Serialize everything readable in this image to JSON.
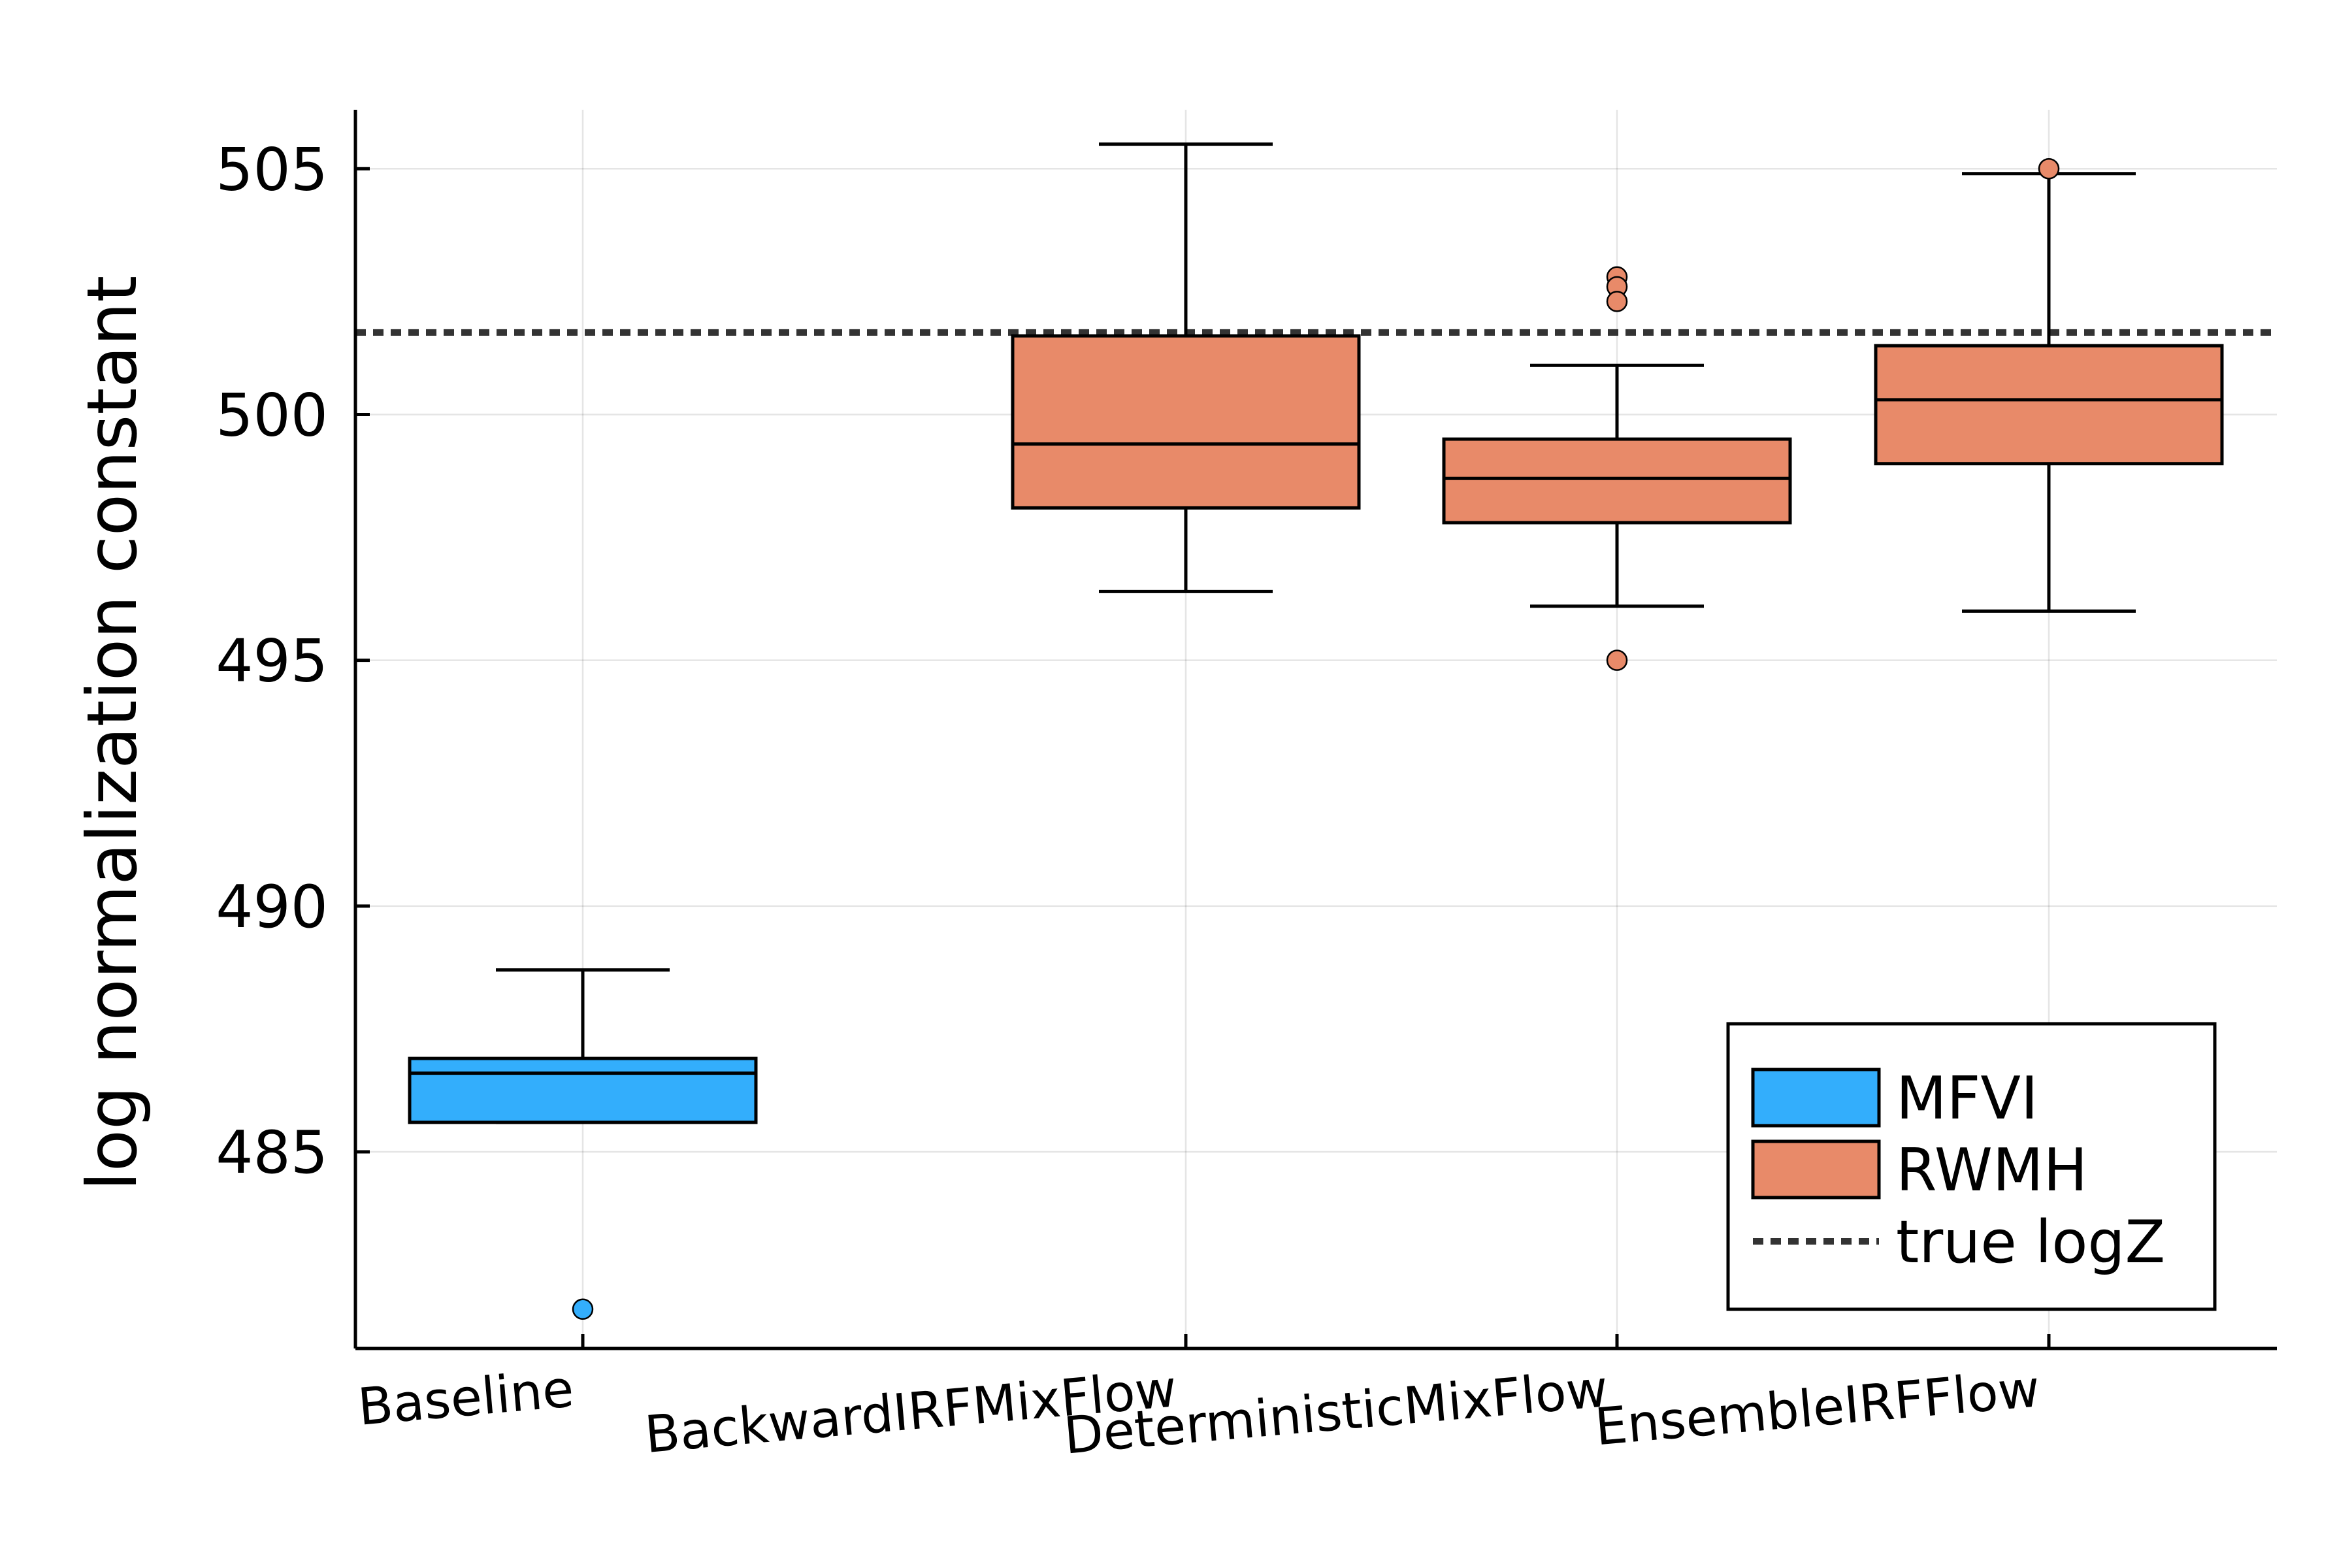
{
  "chart_data": {
    "type": "box",
    "title": "",
    "xlabel": "",
    "ylabel": "log normalization constant",
    "categories": [
      "Baseline",
      "BackwardIRFMixFlow",
      "DeterministicMixFlow",
      "EnsembleIRFFlow"
    ],
    "ylim": [
      481,
      506.2
    ],
    "yticks": [
      485,
      490,
      495,
      500,
      505
    ],
    "grid": true,
    "legend_position": "bottom-right",
    "series": [
      {
        "name": "MFVI",
        "color": "#33aefc",
        "boxes": [
          {
            "category": "Baseline",
            "q1": 485.6,
            "median": 486.6,
            "q3": 486.9,
            "whisker_low": 485.6,
            "whisker_high": 488.7,
            "outliers": [
              481.8
            ]
          }
        ]
      },
      {
        "name": "RWMH",
        "color": "#e88a69",
        "boxes": [
          {
            "category": "BackwardIRFMixFlow",
            "q1": 498.1,
            "median": 499.4,
            "q3": 501.6,
            "whisker_low": 496.4,
            "whisker_high": 505.5,
            "outliers": []
          },
          {
            "category": "DeterministicMixFlow",
            "q1": 497.8,
            "median": 498.7,
            "q3": 499.5,
            "whisker_low": 496.1,
            "whisker_high": 501.0,
            "outliers": [
              502.8,
              502.6,
              502.3,
              495.0
            ]
          },
          {
            "category": "EnsembleIRFFlow",
            "q1": 499.0,
            "median": 500.3,
            "q3": 501.4,
            "whisker_low": 496.0,
            "whisker_high": 504.9,
            "outliers": [
              505.0
            ]
          }
        ]
      }
    ],
    "reference_lines": [
      {
        "name": "true logZ",
        "y": 501.67,
        "style": "dashed",
        "color": "#333333"
      }
    ]
  }
}
